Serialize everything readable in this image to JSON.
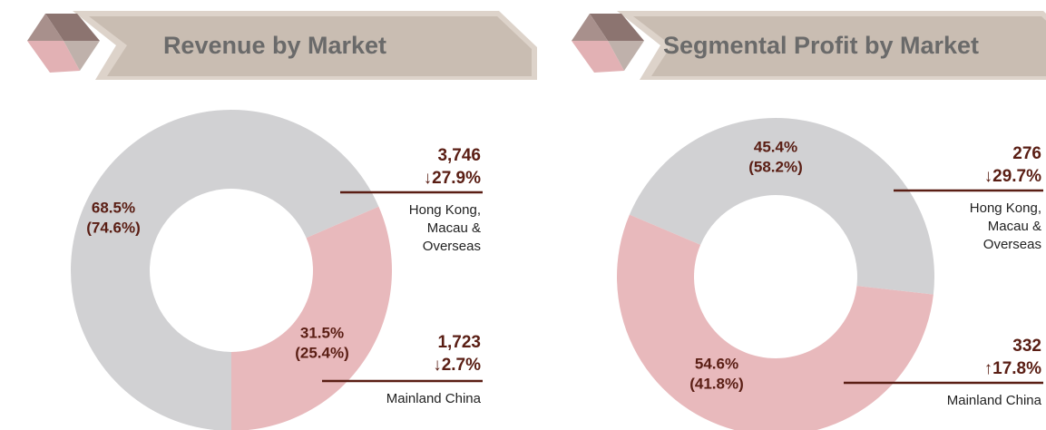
{
  "chart_data": [
    {
      "type": "pie",
      "title": "Revenue by Market",
      "categories": [
        "Hong Kong, Macau & Overseas",
        "Mainland China"
      ],
      "values": [
        68.5,
        31.5
      ],
      "value_labels": [
        "68.5%",
        "31.5%"
      ],
      "previous_values": [
        74.6,
        25.4
      ],
      "previous_labels": [
        "(74.6%)",
        "(25.4%)"
      ],
      "amounts": [
        3746,
        1723
      ],
      "amount_labels": [
        "3,746",
        "1,723"
      ],
      "changes": [
        "↓27.9%",
        "↓2.7%"
      ],
      "colors": [
        "#d1d1d3",
        "#e8b9bc"
      ]
    },
    {
      "type": "pie",
      "title": "Segmental Profit by Market",
      "categories": [
        "Hong Kong, Macau & Overseas",
        "Mainland China"
      ],
      "values": [
        45.4,
        54.6
      ],
      "value_labels": [
        "45.4%",
        "54.6%"
      ],
      "previous_values": [
        58.2,
        41.8
      ],
      "previous_labels": [
        "(58.2%)",
        "(41.8%)"
      ],
      "amounts": [
        276,
        332
      ],
      "amount_labels": [
        "276",
        "332"
      ],
      "changes": [
        "↓29.7%",
        "↑17.8%"
      ],
      "colors": [
        "#d1d1d3",
        "#e8b9bc"
      ]
    }
  ]
}
